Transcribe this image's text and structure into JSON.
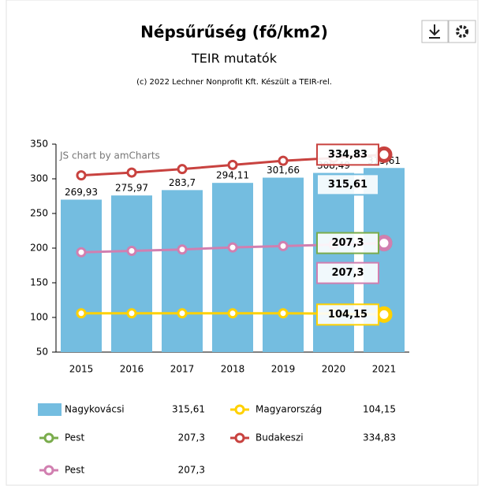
{
  "chart_data": {
    "type": "bar-line",
    "title": "Népsűrűség (fő/km2)",
    "subtitle": "TEIR mutatók",
    "credit": "(c) 2022 Lechner Nonprofit Kft. Készült a TEIR-rel.",
    "watermark": "JS chart by amCharts",
    "categories": [
      "2015",
      "2016",
      "2017",
      "2018",
      "2019",
      "2020",
      "2021"
    ],
    "ylim": [
      50,
      350
    ],
    "yticks": [
      50,
      100,
      150,
      200,
      250,
      300,
      350
    ],
    "series": [
      {
        "name": "Nagykovácsi",
        "kind": "bar",
        "color": "#74bde0",
        "values": [
          269.93,
          275.97,
          283.7,
          294.11,
          301.66,
          308.49,
          315.61
        ],
        "value_labels": [
          "269,93",
          "275,97",
          "283,7",
          "294,11",
          "301,66",
          "308,49",
          "315,61"
        ],
        "last_label": "315,61"
      },
      {
        "name": "Magyarország",
        "kind": "line",
        "color": "#ffd100",
        "values": [
          106,
          106,
          106,
          106,
          106,
          105.5,
          104.15
        ],
        "last_label": "104,15"
      },
      {
        "name": "Pest",
        "kind": "line",
        "color": "#7aac4c",
        "values": [
          null,
          null,
          null,
          null,
          null,
          null,
          207.3
        ],
        "last_label": "207,3"
      },
      {
        "name": "Budakeszi",
        "kind": "line",
        "color": "#c8423f",
        "values": [
          305,
          309,
          314,
          320,
          326,
          330,
          334.83
        ],
        "last_label": "334,83"
      },
      {
        "name": "Pest",
        "kind": "line",
        "color": "#d17fb0",
        "values": [
          194,
          196,
          198,
          201,
          203,
          205,
          207.3
        ],
        "last_label": "207,3"
      }
    ]
  }
}
